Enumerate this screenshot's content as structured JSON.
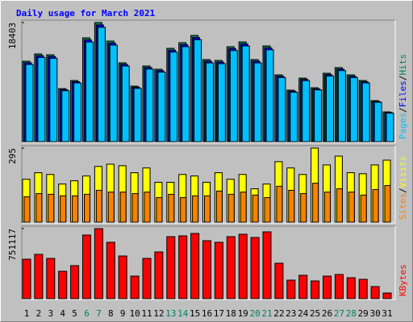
{
  "chart_data": [
    {
      "type": "bar",
      "title": "Daily usage for March 2021",
      "series": [
        {
          "name": "Hits",
          "color": "#00805c",
          "values": [
            12430,
            13550,
            13420,
            8200,
            9450,
            16040,
            18403,
            15540,
            12180,
            8580,
            11690,
            11190,
            14420,
            15290,
            16410,
            12680,
            12550,
            14670,
            15410,
            12680,
            14790,
            10320,
            7960,
            9820,
            8330,
            10570,
            11440,
            10320,
            9450,
            6340,
            4600
          ]
        },
        {
          "name": "Files",
          "color": "#0000ff",
          "values": [
            12180,
            13280,
            13150,
            8040,
            9260,
            15720,
            18030,
            15230,
            11940,
            8410,
            11460,
            10970,
            14130,
            14980,
            16080,
            12430,
            12300,
            14380,
            15100,
            12430,
            14490,
            10110,
            7800,
            9620,
            8160,
            10360,
            11210,
            10110,
            9260,
            6210,
            4510
          ]
        },
        {
          "name": "Pages",
          "color": "#00c0ff",
          "values": [
            11930,
            13010,
            12880,
            7870,
            9070,
            15400,
            17670,
            14920,
            11690,
            8240,
            11220,
            10740,
            13840,
            14680,
            15750,
            12170,
            12050,
            14080,
            14790,
            12170,
            14200,
            9910,
            7640,
            9430,
            8000,
            10150,
            10980,
            9910,
            9070,
            6090,
            4420
          ]
        }
      ],
      "ylim": [
        0,
        18403
      ],
      "yticks": [
        18403
      ],
      "legend": "right",
      "legend_separator": "/"
    },
    {
      "type": "bar",
      "series": [
        {
          "name": "Visits",
          "color": "#ffff00",
          "values": [
            171,
            197,
            190,
            152,
            165,
            184,
            222,
            231,
            225,
            197,
            216,
            159,
            159,
            190,
            184,
            159,
            197,
            171,
            190,
            133,
            152,
            241,
            216,
            190,
            295,
            228,
            263,
            197,
            193,
            228,
            247
          ]
        },
        {
          "name": "Sites",
          "color": "#ff8000",
          "values": [
            101,
            114,
            111,
            105,
            105,
            111,
            127,
            120,
            120,
            114,
            120,
            98,
            111,
            98,
            105,
            105,
            124,
            111,
            120,
            108,
            98,
            143,
            127,
            114,
            155,
            120,
            133,
            120,
            108,
            130,
            146
          ]
        }
      ],
      "ylim": [
        0,
        295
      ],
      "yticks": [
        295
      ],
      "legend": "right",
      "legend_separator": "/"
    },
    {
      "type": "bar",
      "series": [
        {
          "name": "KBytes",
          "color": "#ff0000",
          "values": [
            423000,
            474900,
            431700,
            293600,
            354000,
            682100,
            751117,
            604400,
            457600,
            241800,
            431700,
            500800,
            664800,
            673400,
            699300,
            621600,
            604400,
            664800,
            690700,
            656200,
            716600,
            379900,
            198600,
            250400,
            189900,
            241800,
            259000,
            224500,
            207200,
            129500,
            60400
          ]
        }
      ],
      "ylim": [
        0,
        751117
      ],
      "yticks": [
        751117
      ],
      "legend": "right",
      "categories": [
        "1",
        "2",
        "3",
        "4",
        "5",
        "6",
        "7",
        "8",
        "9",
        "10",
        "11",
        "12",
        "13",
        "14",
        "15",
        "16",
        "17",
        "18",
        "19",
        "20",
        "21",
        "22",
        "23",
        "24",
        "25",
        "26",
        "27",
        "28",
        "29",
        "30",
        "31"
      ],
      "category_colors": [
        "#000000",
        "#000000",
        "#000000",
        "#000000",
        "#000000",
        "#00805c",
        "#00805c",
        "#000000",
        "#000000",
        "#000000",
        "#000000",
        "#000000",
        "#00805c",
        "#00805c",
        "#000000",
        "#000000",
        "#000000",
        "#000000",
        "#000000",
        "#00805c",
        "#00805c",
        "#000000",
        "#000000",
        "#000000",
        "#000000",
        "#000000",
        "#00805c",
        "#00805c",
        "#000000",
        "#000000",
        "#000000"
      ]
    }
  ]
}
